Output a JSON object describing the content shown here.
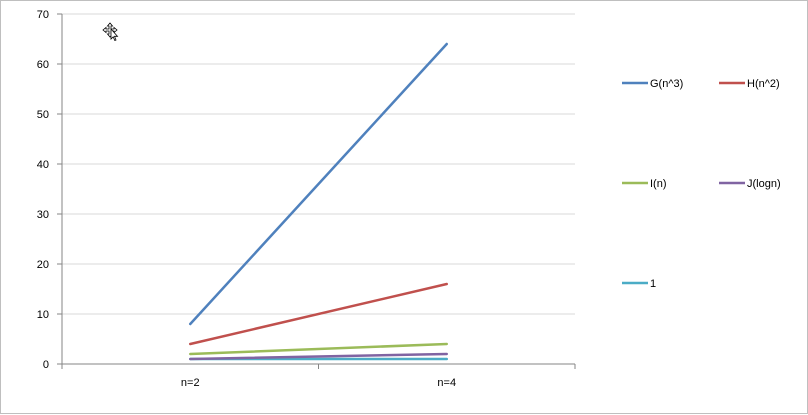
{
  "chart_data": {
    "type": "line",
    "categories": [
      "n=2",
      "n=4"
    ],
    "series": [
      {
        "name": "G(n^3)",
        "values": [
          8,
          64
        ],
        "color": "#4f81bd"
      },
      {
        "name": "H(n^2)",
        "values": [
          4,
          16
        ],
        "color": "#c0504d"
      },
      {
        "name": "I(n)",
        "values": [
          2,
          4
        ],
        "color": "#9bbb59"
      },
      {
        "name": "J(logn)",
        "values": [
          1,
          2
        ],
        "color": "#8064a2"
      },
      {
        "name": "1",
        "values": [
          1,
          1
        ],
        "color": "#4bacc6"
      }
    ],
    "ylim": [
      0,
      70
    ],
    "yticks": [
      0,
      10,
      20,
      30,
      40,
      50,
      60,
      70
    ],
    "grid": true,
    "legend_position": "right"
  }
}
